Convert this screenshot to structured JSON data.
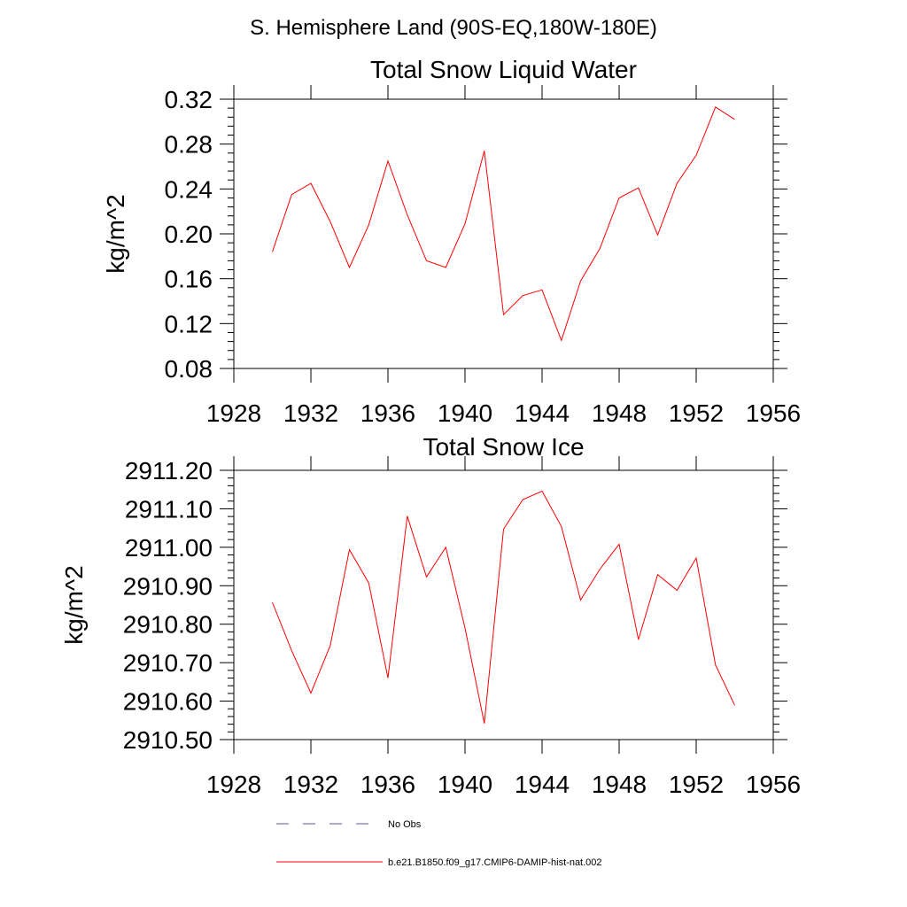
{
  "page": {
    "title": "S. Hemisphere Land (90S-EQ,180W-180E)"
  },
  "legend": {
    "placement": "bottom",
    "entries": [
      {
        "label": "No Obs",
        "color": "#5a5a9a",
        "dash": true
      },
      {
        "label": "b.e21.B1850.f09_g17.CMIP6-DAMIP-hist-nat.002",
        "color": "#ff0000",
        "dash": false
      }
    ]
  },
  "chart_data": [
    {
      "type": "line",
      "title": "Total Snow Liquid Water",
      "xlabel": "",
      "ylabel": "kg/m^2",
      "xlim": [
        1928,
        1956
      ],
      "ylim": [
        0.08,
        0.32
      ],
      "x_ticks": [
        1928,
        1932,
        1936,
        1940,
        1944,
        1948,
        1952,
        1956
      ],
      "x_tick_labels": [
        "1928",
        "1932",
        "1936",
        "1940",
        "1944",
        "1948",
        "1952",
        "1956"
      ],
      "y_ticks": [
        0.08,
        0.12,
        0.16,
        0.2,
        0.24,
        0.28,
        0.32
      ],
      "y_tick_labels": [
        "0.08",
        "0.12",
        "0.16",
        "0.20",
        "0.24",
        "0.28",
        "0.32"
      ],
      "grid": false,
      "series": [
        {
          "name": "b.e21.B1850.f09_g17.CMIP6-DAMIP-hist-nat.002",
          "color": "#ff0000",
          "x": [
            1930,
            1931,
            1932,
            1933,
            1934,
            1935,
            1936,
            1937,
            1938,
            1939,
            1940,
            1941,
            1942,
            1943,
            1944,
            1945,
            1946,
            1947,
            1948,
            1949,
            1950,
            1951,
            1952,
            1953,
            1954
          ],
          "values": [
            0.184,
            0.235,
            0.245,
            0.211,
            0.17,
            0.208,
            0.265,
            0.217,
            0.176,
            0.17,
            0.209,
            0.274,
            0.128,
            0.145,
            0.15,
            0.105,
            0.158,
            0.187,
            0.232,
            0.241,
            0.199,
            0.245,
            0.27,
            0.313,
            0.302
          ]
        }
      ]
    },
    {
      "type": "line",
      "title": "Total Snow Ice",
      "xlabel": "",
      "ylabel": "kg/m^2",
      "xlim": [
        1928,
        1956
      ],
      "ylim": [
        2910.5,
        2911.2
      ],
      "x_ticks": [
        1928,
        1932,
        1936,
        1940,
        1944,
        1948,
        1952,
        1956
      ],
      "x_tick_labels": [
        "1928",
        "1932",
        "1936",
        "1940",
        "1944",
        "1948",
        "1952",
        "1956"
      ],
      "y_ticks": [
        2910.5,
        2910.6,
        2910.7,
        2910.8,
        2910.9,
        2911.0,
        2911.1,
        2911.2
      ],
      "y_tick_labels": [
        "2910.50",
        "2910.60",
        "2910.70",
        "2910.80",
        "2910.90",
        "2911.00",
        "2911.10",
        "2911.20"
      ],
      "grid": false,
      "series": [
        {
          "name": "b.e21.B1850.f09_g17.CMIP6-DAMIP-hist-nat.002",
          "color": "#ff0000",
          "x": [
            1930,
            1931,
            1932,
            1933,
            1934,
            1935,
            1936,
            1937,
            1938,
            1939,
            1940,
            1941,
            1942,
            1943,
            1944,
            1945,
            1946,
            1947,
            1948,
            1949,
            1950,
            1951,
            1952,
            1953,
            1954
          ],
          "values": [
            2910.857,
            2910.731,
            2910.621,
            2910.744,
            2910.994,
            2910.907,
            2910.66,
            2911.081,
            2910.923,
            2911.0,
            2910.79,
            2910.542,
            2911.047,
            2911.124,
            2911.146,
            2911.054,
            2910.863,
            2910.943,
            2911.008,
            2910.76,
            2910.929,
            2910.888,
            2910.972,
            2910.694,
            2910.589
          ]
        }
      ]
    }
  ]
}
